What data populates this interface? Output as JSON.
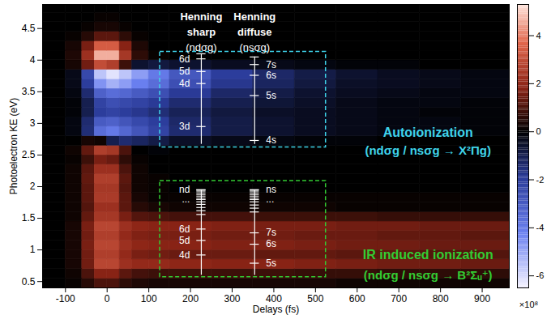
{
  "chart_data": {
    "type": "heatmap",
    "xlabel": "Delays (fs)",
    "ylabel": "Photoelectron KE (eV)",
    "xlim": [
      -155,
      965
    ],
    "ylim": [
      0.4,
      4.88
    ],
    "xticks": [
      -100,
      0,
      100,
      200,
      300,
      400,
      500,
      600,
      700,
      800,
      900
    ],
    "yticks": [
      0.5,
      1,
      1.5,
      2,
      2.5,
      3,
      3.5,
      4,
      4.5
    ],
    "cells": {
      "x_edges": [
        -155,
        -100,
        -60,
        -30,
        0,
        30,
        60,
        100,
        150,
        250,
        350,
        450,
        550,
        650,
        750,
        850,
        965
      ],
      "y_edges": [
        0.4,
        0.55,
        0.7,
        0.85,
        1,
        1.15,
        1.3,
        1.45,
        1.6,
        1.75,
        1.9,
        2.05,
        2.2,
        2.35,
        2.5,
        2.65,
        2.8,
        2.95,
        3.1,
        3.25,
        3.4,
        3.55,
        3.7,
        3.85,
        4,
        4.15,
        4.3,
        4.45,
        4.6,
        4.75,
        4.9
      ],
      "values": [
        [
          0,
          0.1,
          0.5,
          1,
          1,
          0.6,
          0.4,
          0.3,
          0.3,
          0.3,
          0.3,
          0.3,
          0.2,
          0.2,
          0.2,
          0.2
        ],
        [
          0,
          0.2,
          1,
          1.8,
          1.8,
          1.2,
          0.9,
          0.8,
          0.8,
          0.8,
          0.8,
          0.7,
          0.7,
          0.6,
          0.6,
          0.6
        ],
        [
          0,
          0.3,
          1.5,
          2.8,
          2.8,
          2.2,
          2,
          2,
          1.9,
          1.8,
          1.8,
          1.7,
          1.6,
          1.5,
          1.5,
          1.4
        ],
        [
          0,
          0.3,
          1.5,
          2.6,
          2.6,
          2,
          1.6,
          1.5,
          1.4,
          1.4,
          1.3,
          1.3,
          1.2,
          1.2,
          1.1,
          1.1
        ],
        [
          0,
          0.3,
          1.6,
          2.8,
          2.8,
          2.2,
          1.9,
          1.8,
          1.8,
          1.7,
          1.7,
          1.6,
          1.5,
          1.5,
          1.4,
          1.4
        ],
        [
          0,
          0.3,
          1.5,
          2.6,
          2.6,
          2,
          1.7,
          1.6,
          1.6,
          1.5,
          1.5,
          1.4,
          1.4,
          1.3,
          1.3,
          1.2
        ],
        [
          0,
          0.3,
          1.6,
          2.8,
          2.8,
          2.2,
          1.9,
          1.8,
          1.8,
          1.7,
          1.6,
          1.6,
          1.5,
          1.5,
          1.4,
          1.4
        ],
        [
          0,
          0.2,
          1.3,
          2.4,
          2.4,
          1.6,
          1.1,
          1,
          0.9,
          0.9,
          0.8,
          0.8,
          0.8,
          0.7,
          0.7,
          0.7
        ],
        [
          0,
          0.2,
          1.1,
          2.2,
          2.2,
          1.2,
          0.5,
          0.3,
          0.2,
          0.2,
          0.2,
          0.2,
          0.1,
          0.1,
          0.1,
          0.1
        ],
        [
          0,
          0.2,
          1.2,
          2.5,
          2.5,
          1.2,
          0.3,
          0.1,
          0.1,
          0.1,
          0.1,
          0.1,
          0.1,
          0.1,
          0.1,
          0.1
        ],
        [
          0,
          0.2,
          1.2,
          2.4,
          2.4,
          1.1,
          0.2,
          0.1,
          0,
          0,
          0,
          0,
          0,
          0,
          0,
          0
        ],
        [
          0,
          0.2,
          1.3,
          2.6,
          2.6,
          1.2,
          0.2,
          0.1,
          0,
          0,
          0,
          0,
          0,
          0,
          0,
          0
        ],
        [
          0,
          0.2,
          1.2,
          2.2,
          2.2,
          1,
          0.2,
          0,
          0,
          0,
          0,
          0,
          0,
          0,
          0,
          0
        ],
        [
          0,
          0.1,
          0.8,
          1.6,
          1.4,
          0.6,
          0.1,
          0,
          0,
          0,
          0,
          0,
          0,
          0,
          0,
          0
        ],
        [
          0,
          0.2,
          1.3,
          2.6,
          2.4,
          1,
          0,
          -0.1,
          0,
          0,
          0,
          0,
          0,
          0,
          0,
          0
        ],
        [
          0,
          0,
          0.3,
          0.2,
          -1,
          -1.4,
          -1.2,
          -0.9,
          -0.5,
          -0.3,
          -0.2,
          -0.1,
          -0.1,
          0,
          0,
          0
        ],
        [
          0,
          -0.2,
          -1.5,
          -3.6,
          -4,
          -3.4,
          -2.8,
          -2.2,
          -1.4,
          -0.9,
          -0.6,
          -0.4,
          -0.3,
          -0.2,
          -0.2,
          -0.1
        ],
        [
          0,
          -0.2,
          -1.4,
          -3,
          -3.2,
          -2.8,
          -2.4,
          -2,
          -1.3,
          -0.9,
          -0.6,
          -0.4,
          -0.3,
          -0.2,
          -0.2,
          -0.1
        ],
        [
          0,
          -0.1,
          -1,
          -2,
          -2.2,
          -2,
          -1.8,
          -1.5,
          -1.1,
          -0.8,
          -0.5,
          -0.4,
          -0.3,
          -0.2,
          -0.1,
          -0.1
        ],
        [
          0,
          -0.1,
          -1,
          -2.2,
          -2.6,
          -2.4,
          -2.2,
          -1.9,
          -1.4,
          -1,
          -0.7,
          -0.5,
          -0.3,
          -0.2,
          -0.2,
          -0.1
        ],
        [
          0,
          -0.2,
          -1.4,
          -3.2,
          -3.6,
          -3.4,
          -3,
          -2.6,
          -1.9,
          -1.3,
          -0.9,
          -0.6,
          -0.4,
          -0.3,
          -0.2,
          -0.2
        ],
        [
          0,
          -0.3,
          -2,
          -4.6,
          -5.2,
          -4.8,
          -4.2,
          -3.6,
          -2.6,
          -1.8,
          -1.2,
          -0.8,
          -0.5,
          -0.4,
          -0.3,
          -0.2
        ],
        [
          0,
          -0.3,
          -2.4,
          -5.6,
          -6.2,
          -5.6,
          -4.8,
          -4,
          -2.9,
          -2,
          -1.3,
          -0.9,
          -0.6,
          -0.4,
          -0.3,
          -0.2
        ],
        [
          0,
          0.3,
          1.5,
          3,
          2.6,
          0.8,
          -0.6,
          -0.8,
          -0.6,
          -0.4,
          -0.3,
          -0.2,
          -0.1,
          -0.1,
          0,
          0
        ],
        [
          0,
          0.4,
          2.2,
          4.6,
          4.6,
          2.4,
          0.6,
          0.1,
          0,
          0,
          0,
          0,
          0,
          0,
          0,
          0
        ],
        [
          0,
          0.3,
          1.6,
          3.4,
          3.4,
          1.8,
          0.4,
          0,
          0,
          0,
          0,
          0,
          0,
          0,
          0,
          0
        ],
        [
          0,
          0.1,
          0.5,
          1.2,
          1.2,
          0.6,
          0.1,
          0,
          0,
          0,
          0,
          0,
          0,
          0,
          0,
          0
        ],
        [
          0,
          0,
          0.1,
          0.3,
          0.3,
          0.1,
          0,
          0,
          0,
          0,
          0,
          0,
          0,
          0,
          0,
          0
        ],
        [
          0,
          0,
          0,
          0.1,
          0.1,
          0,
          0,
          0,
          0,
          0,
          0,
          0,
          0,
          0,
          0,
          0
        ],
        [
          0,
          0,
          0,
          0,
          0,
          0,
          0,
          0,
          0,
          0,
          0,
          0,
          0,
          0,
          0,
          0
        ]
      ]
    },
    "colorbar": {
      "range": [
        -6.5,
        5.3
      ],
      "ticks": [
        -6,
        -4,
        -2,
        0,
        2,
        4
      ],
      "label": "×10⁸"
    },
    "annotations": [
      {
        "box": {
          "x": [
            127,
            525
          ],
          "y": [
            2.62,
            4.13
          ],
          "color": "#3fd4ea"
        },
        "text": {
          "lines": [
            "Autoionization",
            "(ndσg / nsσg → X²Πg)"
          ],
          "x": 770,
          "y": [
            2.85,
            2.57
          ],
          "color": "#3fd4ea"
        },
        "ladders": [
          {
            "header": [
              "Henning",
              "sharp",
              "(ndσg)"
            ],
            "x": 226,
            "line": [
              2.67,
              4.1
            ],
            "levels": [
              {
                "label": "3d",
                "value": 2.95
              },
              {
                "label": "4d",
                "value": 3.63
              },
              {
                "label": "5d",
                "value": 3.82
              },
              {
                "label": "6d",
                "value": 4.02
              }
            ],
            "limit_ticks": [
              4.1
            ]
          },
          {
            "header": [
              "Henning",
              "diffuse",
              "(nsσg)"
            ],
            "x": 354,
            "line": [
              2.67,
              4.05
            ],
            "levels": [
              {
                "label": "4s",
                "value": 2.73
              },
              {
                "label": "5s",
                "value": 3.44
              },
              {
                "label": "6s",
                "value": 3.76
              },
              {
                "label": "7s",
                "value": 3.93
              }
            ],
            "limit_ticks": [
              4.05
            ]
          }
        ]
      },
      {
        "box": {
          "x": [
            127,
            525
          ],
          "y": [
            0.57,
            2.09
          ],
          "color": "#33cc33"
        },
        "text": {
          "lines": [
            "IR induced ionization",
            "(ndσg / nsσg → B²Σᵤ⁺)"
          ],
          "x": 770,
          "y": [
            0.92,
            0.6
          ],
          "color": "#33cc33"
        },
        "ladders": [
          {
            "x": 226,
            "line": [
              0.6,
              1.95
            ],
            "levels": [
              {
                "label": "4d",
                "value": 0.92
              },
              {
                "label": "5d",
                "value": 1.15
              },
              {
                "label": "6d",
                "value": 1.33
              },
              {
                "label": "...",
                "value": 1.8
              },
              {
                "label": "nd",
                "value": 1.95
              }
            ],
            "limit_ticks": [
              1.56,
              1.62,
              1.67,
              1.72,
              1.76,
              1.8,
              1.84,
              1.87,
              1.9,
              1.93,
              1.95
            ]
          },
          {
            "x": 354,
            "line": [
              0.6,
              1.95
            ],
            "levels": [
              {
                "label": "5s",
                "value": 0.79
              },
              {
                "label": "6s",
                "value": 1.09
              },
              {
                "label": "7s",
                "value": 1.27
              },
              {
                "label": "...",
                "value": 1.8
              },
              {
                "label": "ns",
                "value": 1.95
              }
            ],
            "limit_ticks": [
              1.6,
              1.66,
              1.71,
              1.76,
              1.8,
              1.84,
              1.87,
              1.9,
              1.93,
              1.95
            ]
          }
        ]
      }
    ]
  }
}
